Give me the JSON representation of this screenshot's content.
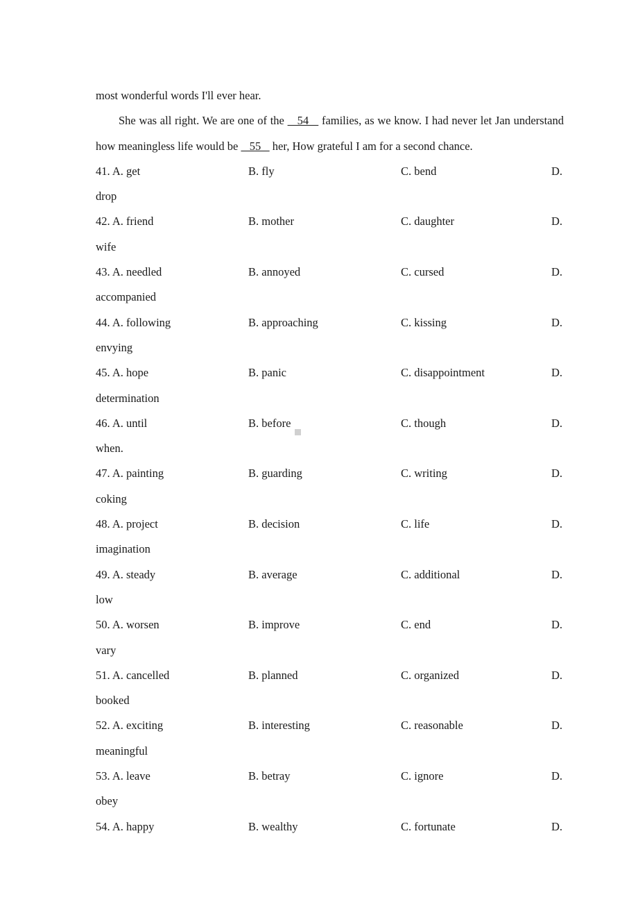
{
  "paragraphs": {
    "p1": "most wonderful words I'll ever hear.",
    "p2_part1": "She was all right. We are one of the ",
    "blank54": "   54   ",
    "p2_part2": " families, as we know. I had never let Jan understand how meaningless life would be ",
    "blank55": "   55   ",
    "p2_part3": " her, How grateful I am for a second chance."
  },
  "questions": [
    {
      "num": "41",
      "a": "A. get",
      "b": "B. fly",
      "c": "C. bend",
      "d": "D.",
      "wrap": "drop"
    },
    {
      "num": "42",
      "a": "A. friend",
      "b": "B. mother",
      "c": "C. daughter",
      "d": "D.",
      "wrap": "wife"
    },
    {
      "num": "43",
      "a": "A. needled",
      "b": "B. annoyed",
      "c": "C. cursed",
      "d": "D.",
      "wrap": "accompanied"
    },
    {
      "num": "44",
      "a": "A. following",
      "b": "B. approaching",
      "c": "C. kissing",
      "d": "D.",
      "wrap": "envying"
    },
    {
      "num": "45",
      "a": "A. hope",
      "b": "B. panic",
      "c": "C. disappointment",
      "d": "D.",
      "wrap": "determination"
    },
    {
      "num": "46",
      "a": "A. until",
      "b": "B. before",
      "c": "C. though",
      "d": "D.",
      "wrap": "when."
    },
    {
      "num": "47",
      "a": "A. painting",
      "b": "B. guarding",
      "c": "C. writing",
      "d": "D.",
      "wrap": "coking"
    },
    {
      "num": "48",
      "a": "A. project",
      "b": "B. decision",
      "c": "C. life",
      "d": "D.",
      "wrap": "imagination"
    },
    {
      "num": "49",
      "a": "A. steady",
      "b": "B. average",
      "c": "C. additional",
      "d": "D.",
      "wrap": "low"
    },
    {
      "num": "50",
      "a": "A. worsen",
      "b": "B. improve",
      "c": "C. end",
      "d": "D.",
      "wrap": "vary"
    },
    {
      "num": "51",
      "a": "A. cancelled",
      "b": "B. planned",
      "c": "C. organized",
      "d": "D.",
      "wrap": "booked"
    },
    {
      "num": "52",
      "a": "A. exciting",
      "b": "B. interesting",
      "c": "C. reasonable",
      "d": "D.",
      "wrap": "meaningful"
    },
    {
      "num": "53",
      "a": "A. leave",
      "b": "B. betray",
      "c": "C. ignore",
      "d": "D.",
      "wrap": "obey"
    },
    {
      "num": "54",
      "a": "A. happy",
      "b": "B. wealthy",
      "c": "C. fortunate",
      "d": "D.",
      "wrap": ""
    }
  ]
}
